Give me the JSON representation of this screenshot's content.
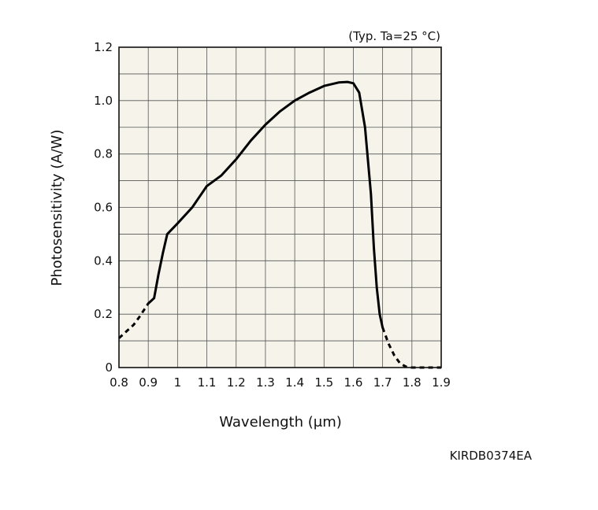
{
  "chart_data": {
    "type": "line",
    "title": "",
    "annotation": "(Typ. Ta=25 °C)",
    "xlabel": "Wavelength (μm)",
    "ylabel": "Photosensitivity (A/W)",
    "xlim": [
      0.8,
      1.9
    ],
    "ylim": [
      0,
      1.2
    ],
    "xticks": [
      "0.8",
      "0.9",
      "1",
      "1.1",
      "1.2",
      "1.3",
      "1.4",
      "1.5",
      "1.6",
      "1.7",
      "1.8",
      "1.9"
    ],
    "yticks": [
      "0",
      "0.2",
      "0.4",
      "0.6",
      "0.8",
      "1.0",
      "1.2"
    ],
    "grid": true,
    "plot_background": "#f5f3ea",
    "line_color": "#000000",
    "series": [
      {
        "style": "dashed",
        "x": [
          0.8,
          0.82,
          0.85,
          0.87,
          0.9
        ],
        "y": [
          0.11,
          0.13,
          0.16,
          0.19,
          0.24
        ]
      },
      {
        "style": "solid",
        "x": [
          0.9,
          0.92,
          0.935,
          0.95,
          0.965,
          1.0,
          1.05,
          1.1,
          1.15,
          1.2,
          1.25,
          1.3,
          1.35,
          1.4,
          1.45,
          1.5,
          1.55,
          1.58,
          1.6,
          1.62,
          1.64,
          1.66,
          1.67,
          1.68,
          1.69,
          1.7
        ],
        "y": [
          0.24,
          0.26,
          0.35,
          0.43,
          0.5,
          0.54,
          0.6,
          0.68,
          0.72,
          0.78,
          0.85,
          0.91,
          0.96,
          1.0,
          1.03,
          1.055,
          1.068,
          1.07,
          1.065,
          1.03,
          0.9,
          0.65,
          0.45,
          0.3,
          0.2,
          0.15
        ]
      },
      {
        "style": "dashed",
        "x": [
          1.7,
          1.72,
          1.74,
          1.76,
          1.78,
          1.8,
          1.85,
          1.9
        ],
        "y": [
          0.15,
          0.09,
          0.045,
          0.015,
          0.003,
          0.0,
          0.0,
          0.0
        ]
      }
    ]
  },
  "figure_code": "KIRDB0374EA"
}
